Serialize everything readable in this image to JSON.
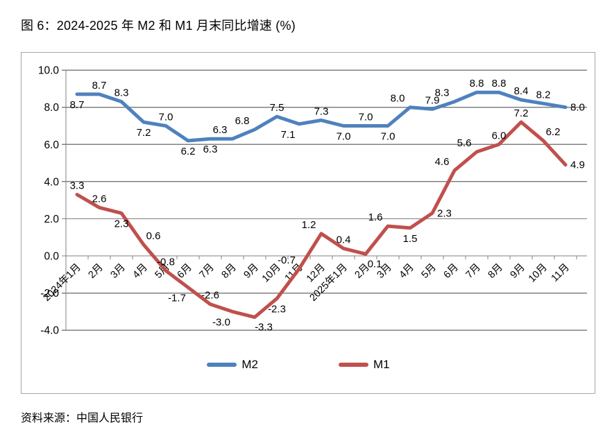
{
  "page": {
    "source_note": "资料来源：中国人民银行"
  },
  "chart_data": {
    "type": "line",
    "title": "图 6：2024-2025 年 M2 和 M1 月末同比增速 (%)",
    "categories": [
      "2024年1月",
      "2月",
      "3月",
      "4月",
      "5月",
      "6月",
      "7月",
      "8月",
      "9月",
      "10月",
      "11月",
      "12月",
      "2025年1月",
      "2月",
      "3月",
      "4月",
      "5月",
      "6月",
      "7月",
      "8月",
      "9月",
      "10月",
      "11月"
    ],
    "series": [
      {
        "name": "M2",
        "color": "#4F81BD",
        "values": [
          8.7,
          8.7,
          8.3,
          7.2,
          7.0,
          6.2,
          6.3,
          6.3,
          6.8,
          7.5,
          7.1,
          7.3,
          7.0,
          7.0,
          7.0,
          8.0,
          7.9,
          8.3,
          8.8,
          8.8,
          8.4,
          8.2,
          8.0
        ],
        "label_positions": [
          "below",
          "above",
          "above",
          "below",
          "above",
          "below",
          "below",
          "above-left",
          "above-left",
          "above",
          "below-left",
          "above",
          "below",
          "above",
          "below",
          "above-left",
          "above",
          "above-left",
          "above",
          "above",
          "above",
          "above",
          "right"
        ]
      },
      {
        "name": "M1",
        "color": "#C0504D",
        "values": [
          3.3,
          2.6,
          2.3,
          0.6,
          -0.8,
          -1.7,
          -2.6,
          -3.0,
          -3.3,
          -2.3,
          -0.7,
          1.2,
          0.4,
          0.1,
          1.6,
          1.5,
          2.3,
          4.6,
          5.6,
          6.0,
          7.2,
          6.2,
          4.9
        ],
        "label_positions": [
          "above",
          "above",
          "below",
          "above-right",
          "above",
          "below-left",
          "above",
          "below-left",
          "below-right",
          "below",
          "above-left",
          "above-left",
          "above",
          "below-right",
          "above-left",
          "below",
          "right",
          "above-left",
          "above-left",
          "above",
          "above",
          "above-right",
          "right"
        ]
      }
    ],
    "xlabel": "",
    "ylabel": "",
    "ylim": [
      -4.0,
      10.0
    ],
    "ytick_step": 2.0,
    "ytick_labels": [
      "10.0",
      "8.0",
      "6.0",
      "4.0",
      "2.0",
      "0.0",
      "-2.0",
      "-4.0"
    ],
    "grid": true,
    "legend_position": "bottom",
    "colors": {
      "gridline": "#808080",
      "plot_border": "#A6A6A6",
      "text": "#000000",
      "background": "#FFFFFF"
    }
  }
}
